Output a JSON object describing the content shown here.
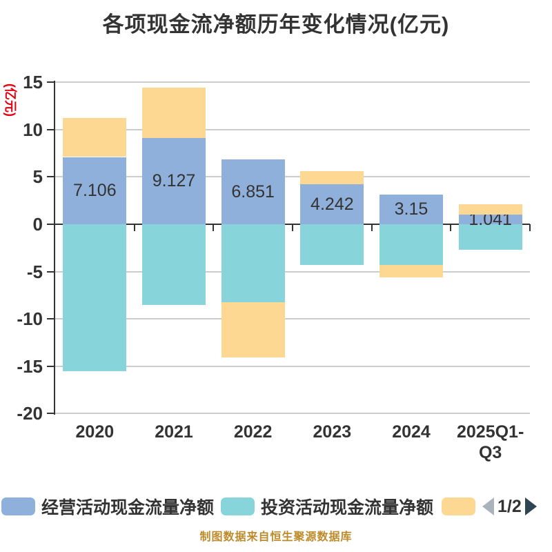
{
  "title": "各项现金流净额历年变化情况(亿元)",
  "y_axis": {
    "unit_label": "(亿元)",
    "unit_label_color": "#e60012",
    "tick_values": [
      15,
      10,
      5,
      0,
      -5,
      -10,
      -15,
      -20
    ],
    "min": -20,
    "max": 15
  },
  "chart_data": {
    "type": "bar",
    "stacked": true,
    "title": "各项现金流净额历年变化情况(亿元)",
    "ylabel": "(亿元)",
    "ylim": [
      -20,
      15
    ],
    "grid": true,
    "legend_position": "bottom",
    "categories": [
      "2020",
      "2021",
      "2022",
      "2023",
      "2024",
      "2025Q1-Q3"
    ],
    "series": [
      {
        "name": "经营活动现金流量净额",
        "color": "#8fb0db",
        "values": [
          7.106,
          9.127,
          6.851,
          4.242,
          3.15,
          1.041
        ],
        "data_labels": [
          "7.106",
          "9.127",
          "6.851",
          "4.242",
          "3.15",
          "1.041"
        ]
      },
      {
        "name": "投资活动现金流量净额",
        "color": "#87d5da",
        "values": [
          -15.5,
          -8.55,
          -8.25,
          -4.3,
          -4.3,
          -2.7
        ]
      },
      {
        "name": "",
        "color": "#fcd893",
        "values": [
          4.13,
          5.31,
          -5.84,
          1.37,
          -1.3,
          1.08
        ]
      }
    ]
  },
  "legend": {
    "items": [
      {
        "label": "经营活动现金流量净额",
        "color": "#8fb0db"
      },
      {
        "label": "投资活动现金流量净额",
        "color": "#87d5da"
      },
      {
        "label": "",
        "color": "#fcd893"
      }
    ],
    "pager": {
      "text": "1/2",
      "prev_color": "#aab2bb",
      "next_color": "#2f4554"
    }
  },
  "caption": "制图数据来自恒生聚源数据库",
  "colors": {
    "axis": "#333333",
    "gridline": "#cccccc",
    "text": "#333333",
    "background": "#ffffff"
  }
}
